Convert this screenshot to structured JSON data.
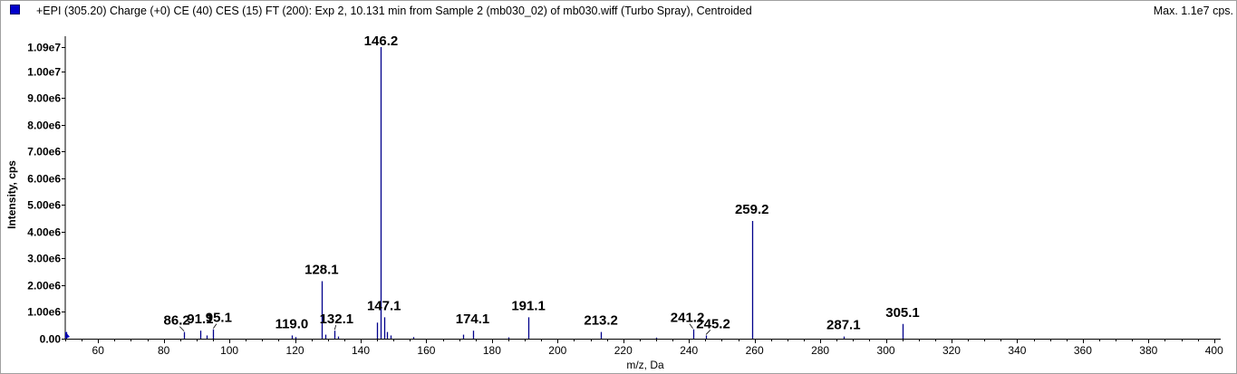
{
  "header": {
    "title": "+EPI (305.20) Charge (+0) CE (40) CES (15) FT (200): Exp 2, 10.131 min from Sample 2 (mb030_02) of mb030.wiff (Turbo Spray), Centroided",
    "max_label": "Max. 1.1e7 cps.",
    "marker_color": "#0000cc"
  },
  "chart_data": {
    "type": "bar",
    "xlabel": "m/z, Da",
    "ylabel": "Intensity, cps",
    "xlim": [
      50,
      402
    ],
    "ylim": [
      0,
      11000000
    ],
    "x_ticks": [
      60,
      80,
      100,
      120,
      140,
      160,
      180,
      200,
      220,
      240,
      260,
      280,
      300,
      320,
      340,
      360,
      380,
      400
    ],
    "y_ticks": [
      {
        "value": 0,
        "label": "0.00"
      },
      {
        "value": 1000000,
        "label": "1.00e6"
      },
      {
        "value": 2000000,
        "label": "2.00e6"
      },
      {
        "value": 3000000,
        "label": "3.00e6"
      },
      {
        "value": 4000000,
        "label": "4.00e6"
      },
      {
        "value": 5000000,
        "label": "5.00e6"
      },
      {
        "value": 6000000,
        "label": "6.00e6"
      },
      {
        "value": 7000000,
        "label": "7.00e6"
      },
      {
        "value": 8000000,
        "label": "8.00e6"
      },
      {
        "value": 9000000,
        "label": "9.00e6"
      },
      {
        "value": 10000000,
        "label": "1.00e7"
      },
      {
        "value": 10900000,
        "label": "1.09e7"
      }
    ],
    "bar_color": "#00008b",
    "peaks": [
      {
        "x": 50.2,
        "y": 250000
      },
      {
        "x": 86.2,
        "y": 250000,
        "label": "86.2"
      },
      {
        "x": 91.1,
        "y": 300000,
        "label": "91.1"
      },
      {
        "x": 93.0,
        "y": 120000
      },
      {
        "x": 95.1,
        "y": 350000,
        "label": "95.1"
      },
      {
        "x": 119.0,
        "y": 120000,
        "label": "119.0"
      },
      {
        "x": 120.1,
        "y": 60000
      },
      {
        "x": 128.1,
        "y": 2150000,
        "label": "128.1"
      },
      {
        "x": 129.1,
        "y": 150000
      },
      {
        "x": 132.1,
        "y": 300000,
        "label": "132.1"
      },
      {
        "x": 133.1,
        "y": 80000
      },
      {
        "x": 145.1,
        "y": 600000
      },
      {
        "x": 146.2,
        "y": 10900000,
        "label": "146.2"
      },
      {
        "x": 147.1,
        "y": 800000,
        "label": "147.1"
      },
      {
        "x": 148.1,
        "y": 250000
      },
      {
        "x": 149.1,
        "y": 120000
      },
      {
        "x": 156.1,
        "y": 60000
      },
      {
        "x": 171.1,
        "y": 150000
      },
      {
        "x": 174.1,
        "y": 300000,
        "label": "174.1"
      },
      {
        "x": 185.1,
        "y": 50000
      },
      {
        "x": 191.1,
        "y": 800000,
        "label": "191.1"
      },
      {
        "x": 213.2,
        "y": 250000,
        "label": "213.2"
      },
      {
        "x": 230.1,
        "y": 40000
      },
      {
        "x": 241.2,
        "y": 350000,
        "label": "241.2"
      },
      {
        "x": 245.2,
        "y": 120000,
        "label": "245.2"
      },
      {
        "x": 259.2,
        "y": 4400000,
        "label": "259.2"
      },
      {
        "x": 287.1,
        "y": 80000,
        "label": "287.1"
      },
      {
        "x": 305.1,
        "y": 550000,
        "label": "305.1"
      }
    ]
  }
}
